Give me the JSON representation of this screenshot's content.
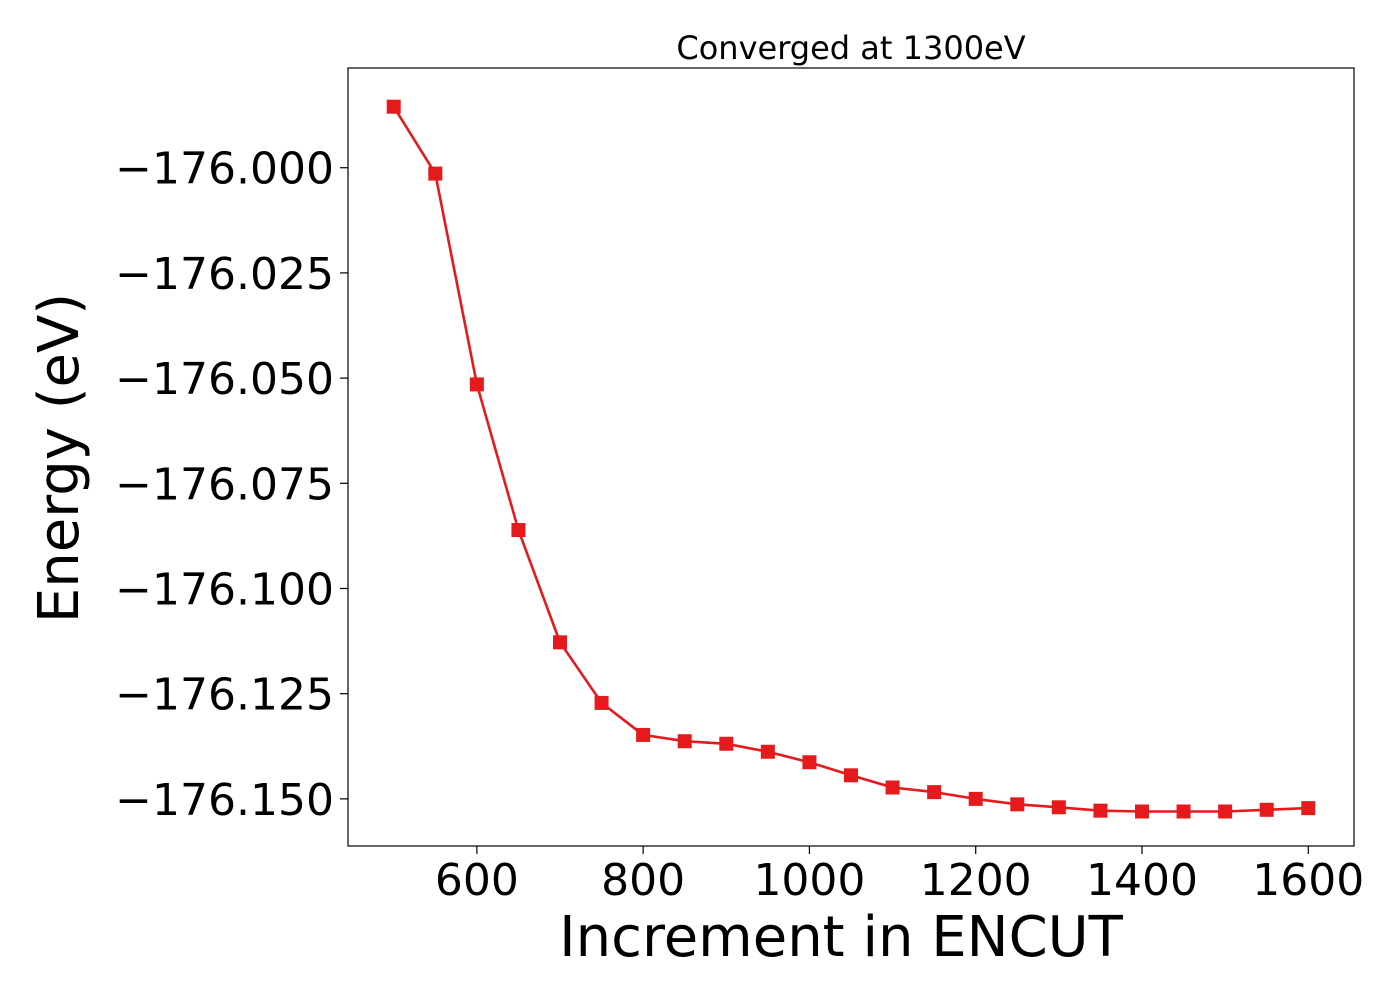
{
  "chart_data": {
    "type": "line",
    "title": "Converged at 1300eV",
    "xlabel": "Increment in ENCUT",
    "ylabel": "Energy (eV)",
    "xlim": [
      445,
      1655
    ],
    "ylim": [
      -176.1612,
      -175.9763
    ],
    "x_ticks": [
      600,
      800,
      1000,
      1200,
      1400,
      1600
    ],
    "x_tick_labels": [
      "600",
      "800",
      "1000",
      "1200",
      "1400",
      "1600"
    ],
    "y_ticks": [
      -176.0,
      -176.025,
      -176.05,
      -176.075,
      -176.1,
      -176.125,
      -176.15
    ],
    "y_tick_labels": [
      "−176.000",
      "−176.025",
      "−176.050",
      "−176.075",
      "−176.100",
      "−176.125",
      "−176.150"
    ],
    "grid": false,
    "series": [
      {
        "color": "#e41a1c",
        "marker": "square",
        "x": [
          500,
          550,
          600,
          650,
          700,
          750,
          800,
          850,
          900,
          950,
          1000,
          1050,
          1100,
          1150,
          1200,
          1250,
          1300,
          1350,
          1400,
          1450,
          1500,
          1550,
          1600
        ],
        "y": [
          -175.9855,
          -176.0014,
          -176.0515,
          -176.0861,
          -176.1128,
          -176.1272,
          -176.1348,
          -176.1363,
          -176.1369,
          -176.1388,
          -176.1413,
          -176.1444,
          -176.1473,
          -176.1484,
          -176.15,
          -176.1513,
          -176.152,
          -176.1528,
          -176.153,
          -176.153,
          -176.153,
          -176.1526,
          -176.1522
        ]
      }
    ]
  }
}
